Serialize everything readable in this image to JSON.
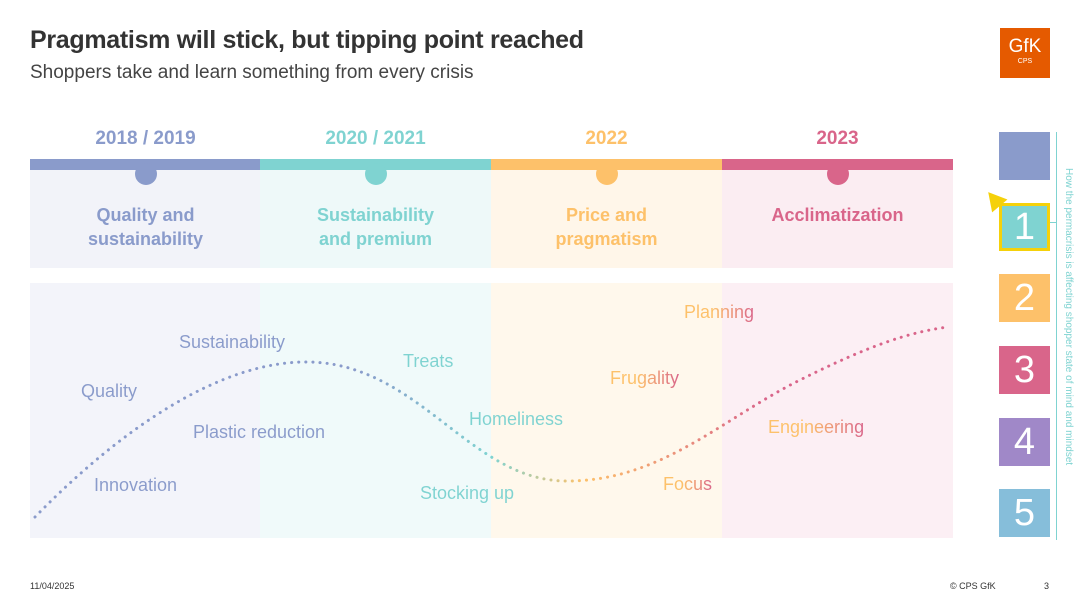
{
  "title": "Pragmatism will stick, but tipping point reached",
  "subtitle": "Shoppers take and learn something from every crisis",
  "logo": {
    "text": "GfK",
    "sub": "CPS"
  },
  "phases": [
    {
      "year": "2018 / 2019",
      "label": "Quality and sustainability",
      "color": "#8A9BCB"
    },
    {
      "year": "2020 / 2021",
      "label": "Sustainability and premium",
      "color": "#7FD3D1"
    },
    {
      "year": "2022",
      "label": "Price and pragmatism",
      "color": "#FDC16A"
    },
    {
      "year": "2023",
      "label": "Acclimatization",
      "color": "#D9658A"
    }
  ],
  "keywords": [
    "Quality",
    "Sustainability",
    "Plastic reduction",
    "Innovation",
    "Treats",
    "Homeliness",
    "Stocking up",
    "Planning",
    "Frugality",
    "Focus",
    "Engineering"
  ],
  "sidebar": {
    "vertical_label": "How the permacrisis is affecting shopper state of mind and mindset",
    "items": [
      "",
      "1",
      "2",
      "3",
      "4",
      "5"
    ],
    "active": "1"
  },
  "footer": {
    "date": "11/04/2025",
    "copyright": "© CPS GfK",
    "page": "3"
  }
}
